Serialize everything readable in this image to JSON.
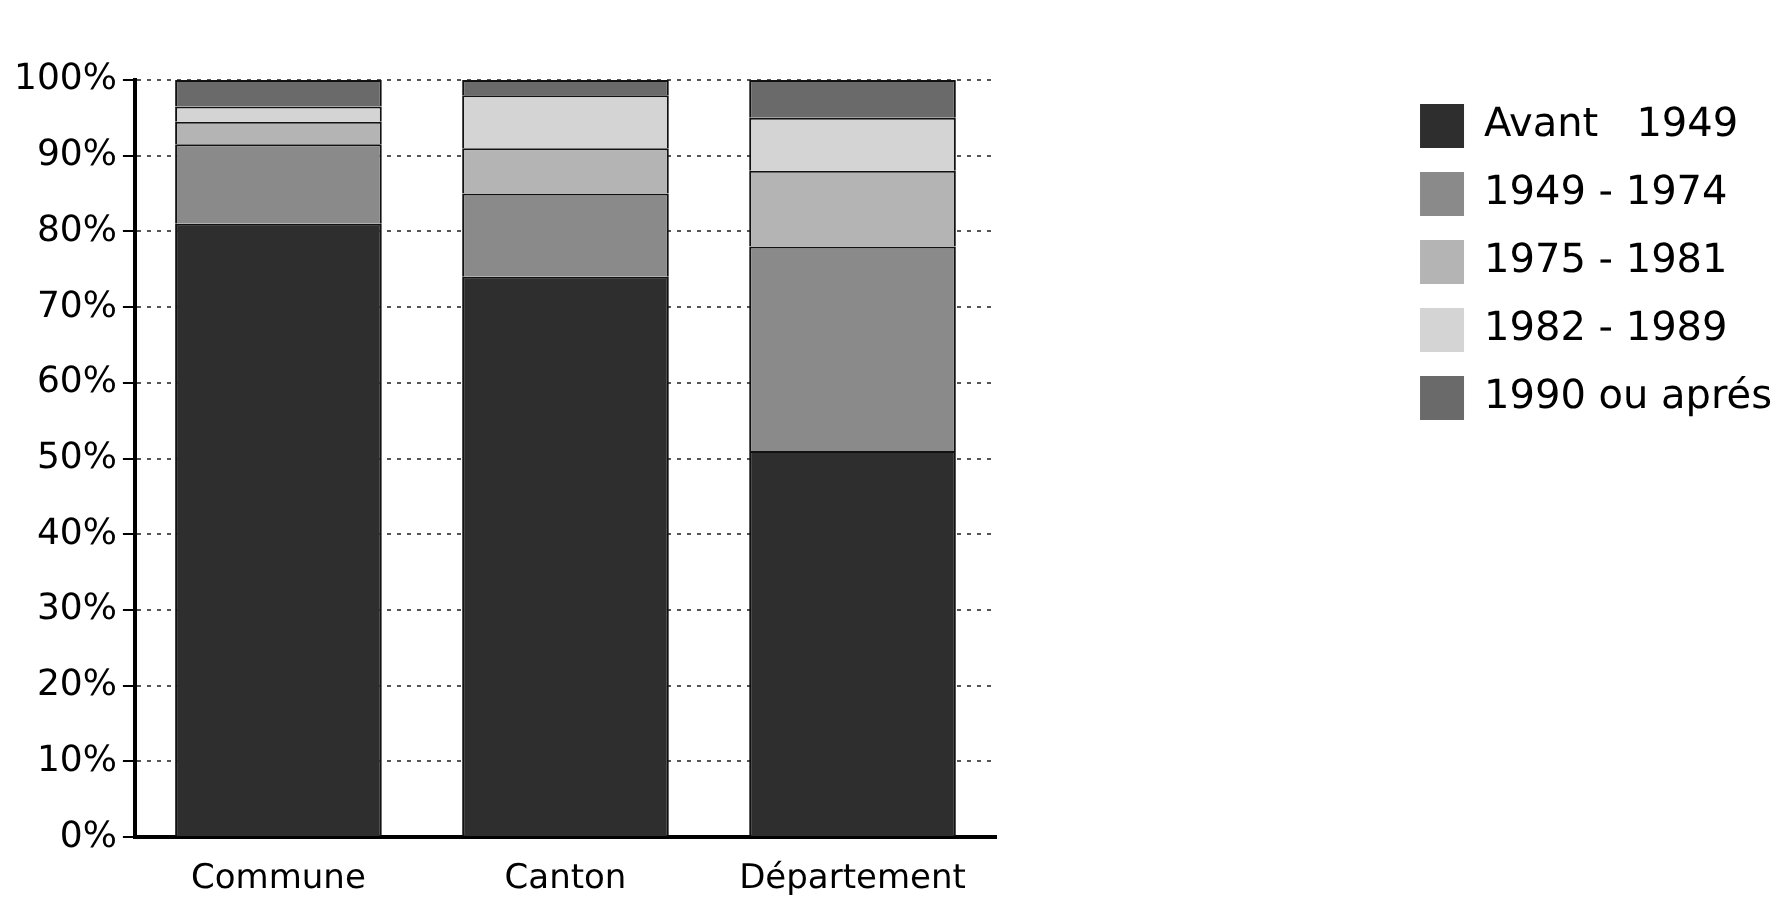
{
  "chart_data": {
    "type": "bar",
    "stacked": true,
    "categories": [
      "Commune",
      "Canton",
      "Département"
    ],
    "series": [
      {
        "name": "Avant   1949",
        "color": "#2e2e2e",
        "values": [
          81,
          74,
          51
        ]
      },
      {
        "name": "1949 - 1974",
        "color": "#8a8a8a",
        "values": [
          10.5,
          11,
          27
        ]
      },
      {
        "name": "1975 - 1981",
        "color": "#b4b4b4",
        "values": [
          3,
          6,
          10
        ]
      },
      {
        "name": "1982 - 1989",
        "color": "#d4d4d4",
        "values": [
          2,
          7,
          7
        ]
      },
      {
        "name": "1990 ou aprés",
        "color": "#6a6a6a",
        "values": [
          3.5,
          2,
          5
        ]
      }
    ],
    "ylim": [
      0,
      100
    ],
    "yticks": [
      {
        "value": 0,
        "label": "0%"
      },
      {
        "value": 10,
        "label": "10%"
      },
      {
        "value": 20,
        "label": "20%"
      },
      {
        "value": 30,
        "label": "30%"
      },
      {
        "value": 40,
        "label": "40%"
      },
      {
        "value": 50,
        "label": "50%"
      },
      {
        "value": 60,
        "label": "60%"
      },
      {
        "value": 70,
        "label": "70%"
      },
      {
        "value": 80,
        "label": "80%"
      },
      {
        "value": 90,
        "label": "90%"
      },
      {
        "value": 100,
        "label": "100%"
      }
    ],
    "grid": "y",
    "legend": "right"
  }
}
